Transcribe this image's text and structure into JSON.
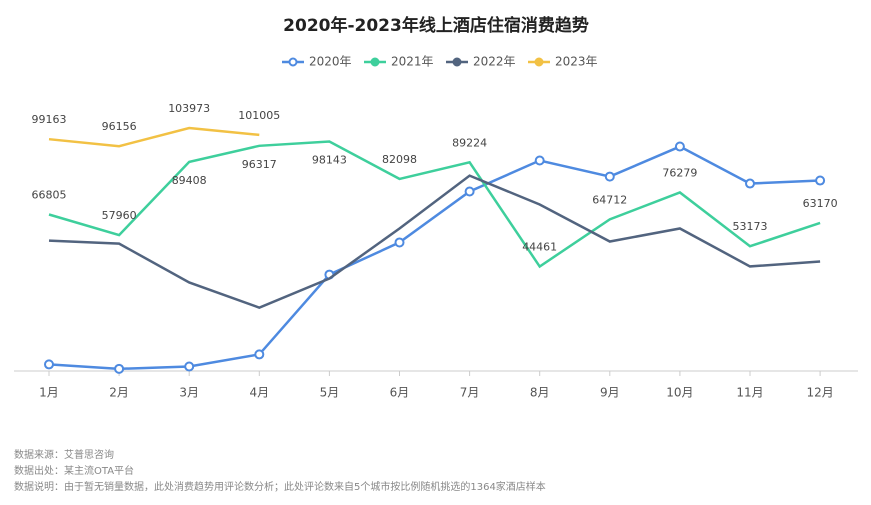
{
  "chart_data": {
    "type": "line",
    "title": "2020年-2023年线上酒店住宿消费趋势",
    "categories": [
      "1月",
      "2月",
      "3月",
      "4月",
      "5月",
      "6月",
      "7月",
      "8月",
      "9月",
      "10月",
      "11月",
      "12月"
    ],
    "series": [
      {
        "name": "2020年",
        "color": "#4e8ae0",
        "values": [
          2400,
          500,
          1500,
          6700,
          41000,
          54800,
          76700,
          90000,
          83100,
          96000,
          80100,
          81400
        ]
      },
      {
        "name": "2021年",
        "color": "#3ecf9c",
        "values": [
          66805,
          57960,
          89408,
          96317,
          98143,
          82098,
          89224,
          44461,
          64712,
          76279,
          53173,
          63170
        ]
      },
      {
        "name": "2022年",
        "color": "#52647f",
        "values": [
          55600,
          54300,
          37600,
          26800,
          39300,
          60800,
          83500,
          71100,
          55200,
          60800,
          44500,
          46600
        ]
      },
      {
        "name": "2023年",
        "color": "#f2c144",
        "values": [
          99163,
          96156,
          103973,
          101005,
          null,
          null,
          null,
          null,
          null,
          null,
          null,
          null
        ]
      }
    ],
    "ylim": [
      0,
      116000
    ],
    "notes": [
      "数据来源：艾普思咨询",
      "数据出处：某主流OTA平台",
      "数据说明：由于暂无销量数据，此处消费趋势用评论数分析；此处评论数来自5个城市按比例随机挑选的1364家酒店样本"
    ]
  }
}
